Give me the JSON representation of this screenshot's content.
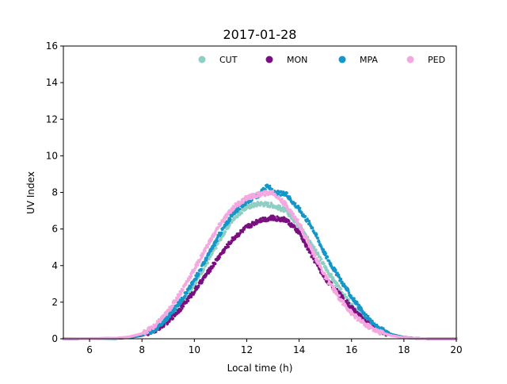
{
  "chart_data": {
    "type": "scatter",
    "title": "2017-01-28",
    "xlabel": "Local time (h)",
    "ylabel": "UV Index",
    "xlim": [
      5,
      20
    ],
    "ylim": [
      0,
      16
    ],
    "xticks": [
      6,
      8,
      10,
      12,
      14,
      16,
      18,
      20
    ],
    "yticks": [
      0,
      2,
      4,
      6,
      8,
      10,
      12,
      14,
      16
    ],
    "grid": false,
    "legend_position": "top-right",
    "series": [
      {
        "name": "CUT",
        "color": "#8ecfc3",
        "x": [
          5,
          7,
          7.5,
          8,
          8.5,
          9,
          9.5,
          10,
          10.5,
          11,
          11.5,
          12,
          12.5,
          13,
          13.5,
          14,
          14.5,
          15,
          15.5,
          16,
          16.5,
          17,
          17.5,
          18,
          18.5,
          19,
          20
        ],
        "y": [
          0,
          0.02,
          0.07,
          0.2,
          0.5,
          1.1,
          2.0,
          3.0,
          4.2,
          5.5,
          6.6,
          7.2,
          7.4,
          7.3,
          7.0,
          6.2,
          5.1,
          3.9,
          2.8,
          1.8,
          1.0,
          0.5,
          0.2,
          0.07,
          0.02,
          0,
          0
        ]
      },
      {
        "name": "MON",
        "color": "#7b0f80",
        "x": [
          5,
          7,
          7.5,
          8,
          8.5,
          9,
          9.5,
          10,
          10.5,
          11,
          11.5,
          12,
          12.5,
          13,
          13.5,
          14,
          14.5,
          15,
          15.5,
          16,
          16.5,
          17,
          17.5,
          18,
          18.5,
          19,
          20
        ],
        "y": [
          0,
          0.02,
          0.07,
          0.18,
          0.45,
          0.95,
          1.7,
          2.6,
          3.6,
          4.6,
          5.5,
          6.1,
          6.5,
          6.6,
          6.5,
          5.8,
          4.5,
          3.3,
          2.5,
          1.7,
          1.0,
          0.5,
          0.2,
          0.07,
          0.02,
          0,
          0
        ]
      },
      {
        "name": "MPA",
        "color": "#1496c8",
        "x": [
          5,
          7,
          7.5,
          8,
          8.5,
          9,
          9.5,
          10,
          10.5,
          11,
          11.5,
          12,
          12.5,
          12.8,
          13,
          13.5,
          14,
          14.5,
          15,
          15.5,
          16,
          16.5,
          17,
          17.5,
          18,
          18.5,
          19,
          20
        ],
        "y": [
          0,
          0.02,
          0.07,
          0.2,
          0.5,
          1.2,
          2.1,
          3.2,
          4.5,
          5.8,
          6.9,
          7.5,
          7.9,
          8.4,
          8.0,
          7.9,
          7.1,
          6.1,
          4.6,
          3.4,
          2.3,
          1.3,
          0.6,
          0.25,
          0.08,
          0.02,
          0,
          0
        ]
      },
      {
        "name": "PED",
        "color": "#f5a8e0",
        "x": [
          5,
          7,
          7.5,
          8,
          8.5,
          9,
          9.5,
          10,
          10.5,
          11,
          11.5,
          12,
          12.5,
          13,
          13.5,
          14,
          14.5,
          15,
          15.5,
          16,
          16.5,
          17,
          17.5,
          18,
          18.5,
          19,
          20
        ],
        "y": [
          0,
          0.03,
          0.1,
          0.28,
          0.7,
          1.5,
          2.6,
          3.8,
          5.1,
          6.3,
          7.2,
          7.7,
          7.9,
          8.0,
          7.3,
          6.3,
          4.8,
          3.4,
          2.3,
          1.4,
          0.8,
          0.4,
          0.18,
          0.06,
          0.02,
          0,
          0
        ]
      }
    ]
  }
}
